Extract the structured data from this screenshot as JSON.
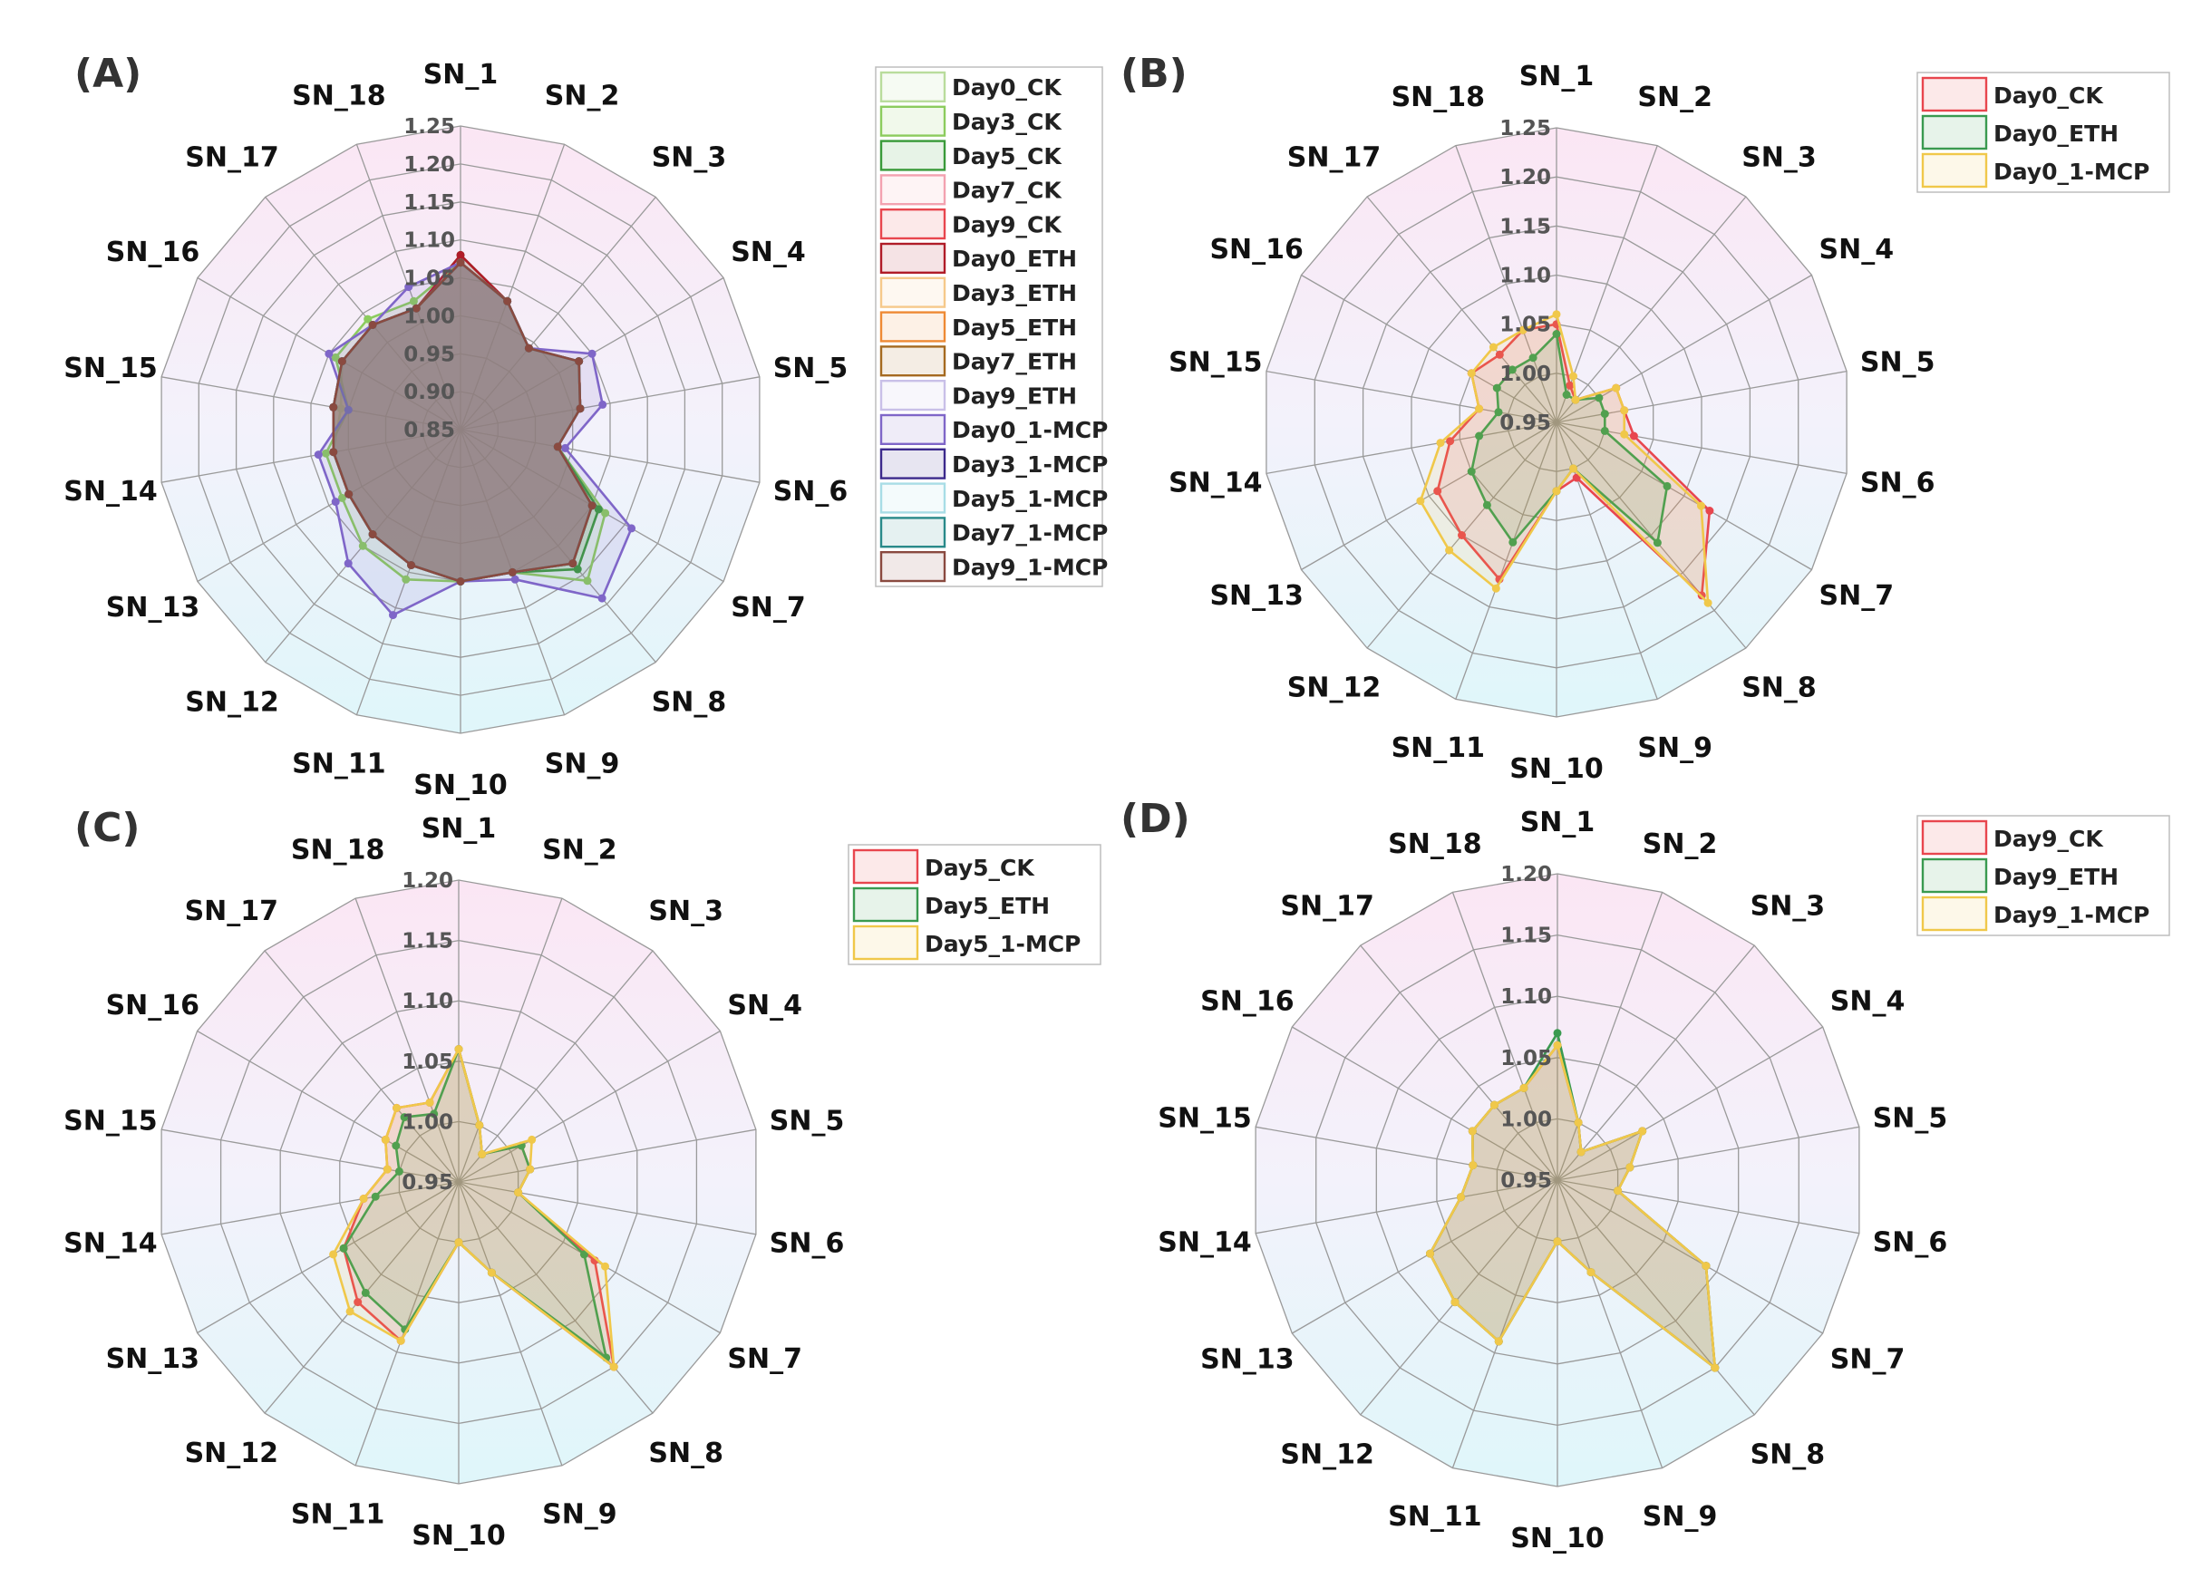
{
  "figure": {
    "panels": [
      {
        "label": "(A)"
      },
      {
        "label": "(B)"
      },
      {
        "label": "(C)"
      },
      {
        "label": "(D)"
      }
    ]
  },
  "chart_data": [
    {
      "type": "radar",
      "panel": "(A)",
      "axes": [
        "SN_1",
        "SN_2",
        "SN_3",
        "SN_4",
        "SN_5",
        "SN_6",
        "SN_7",
        "SN_8",
        "SN_9",
        "SN_10",
        "SN_11",
        "SN_12",
        "SN_13",
        "SN_14",
        "SN_15",
        "SN_16",
        "SN_17",
        "SN_18"
      ],
      "rlim": [
        0.85,
        1.25
      ],
      "ticks": [
        0.85,
        0.9,
        0.95,
        1.0,
        1.05,
        1.1,
        1.15,
        1.2,
        1.25
      ],
      "tick_labels": [
        "0.85",
        "0.90",
        "0.95",
        "1.00",
        "1.05",
        "1.10",
        "1.15",
        "1.20",
        "1.25"
      ],
      "legend_position": "right",
      "series": [
        {
          "name": "Day0_CK",
          "color": "#b9dc9c",
          "values": [
            1.07,
            1.03,
            0.99,
            1.03,
            1.01,
            0.98,
            1.06,
            1.09,
            1.05,
            1.05,
            1.04,
            1.03,
            1.02,
            1.02,
            1.01,
            1.03,
            1.03,
            1.02
          ]
        },
        {
          "name": "Day3_CK",
          "color": "#8ccc5e",
          "values": [
            1.07,
            1.03,
            0.99,
            1.03,
            1.01,
            0.98,
            1.07,
            1.11,
            1.05,
            1.05,
            1.06,
            1.05,
            1.03,
            1.03,
            1.0,
            1.04,
            1.04,
            1.03
          ]
        },
        {
          "name": "Day5_CK",
          "color": "#3a9a3a",
          "values": [
            1.08,
            1.03,
            0.99,
            1.03,
            1.01,
            0.98,
            1.06,
            1.09,
            1.05,
            1.05,
            1.04,
            1.03,
            1.02,
            1.02,
            1.02,
            1.03,
            1.03,
            1.02
          ]
        },
        {
          "name": "Day7_CK",
          "color": "#f3a2b0",
          "values": [
            1.07,
            1.03,
            0.99,
            1.03,
            1.01,
            0.98,
            1.05,
            1.08,
            1.05,
            1.05,
            1.04,
            1.03,
            1.02,
            1.02,
            1.02,
            1.03,
            1.03,
            1.02
          ]
        },
        {
          "name": "Day9_CK",
          "color": "#e8464e",
          "values": [
            1.07,
            1.03,
            0.99,
            1.03,
            1.01,
            0.98,
            1.05,
            1.08,
            1.05,
            1.05,
            1.04,
            1.03,
            1.02,
            1.02,
            1.02,
            1.03,
            1.03,
            1.02
          ]
        },
        {
          "name": "Day0_ETH",
          "color": "#b01c28",
          "values": [
            1.08,
            1.03,
            0.99,
            1.03,
            1.01,
            0.98,
            1.05,
            1.08,
            1.05,
            1.05,
            1.04,
            1.03,
            1.02,
            1.02,
            1.02,
            1.03,
            1.03,
            1.02
          ]
        },
        {
          "name": "Day3_ETH",
          "color": "#f6c98b",
          "values": [
            1.07,
            1.03,
            0.99,
            1.03,
            1.01,
            0.98,
            1.05,
            1.08,
            1.05,
            1.05,
            1.04,
            1.03,
            1.02,
            1.02,
            1.02,
            1.03,
            1.03,
            1.02
          ]
        },
        {
          "name": "Day5_ETH",
          "color": "#ee8a35",
          "values": [
            1.07,
            1.03,
            0.99,
            1.03,
            1.01,
            0.98,
            1.05,
            1.08,
            1.05,
            1.05,
            1.04,
            1.03,
            1.02,
            1.02,
            1.02,
            1.03,
            1.03,
            1.02
          ]
        },
        {
          "name": "Day7_ETH",
          "color": "#a56a20",
          "values": [
            1.07,
            1.03,
            0.99,
            1.03,
            1.01,
            0.98,
            1.05,
            1.08,
            1.05,
            1.05,
            1.04,
            1.03,
            1.02,
            1.02,
            1.02,
            1.03,
            1.03,
            1.02
          ]
        },
        {
          "name": "Day9_ETH",
          "color": "#c9c0e8",
          "values": [
            1.07,
            1.03,
            0.99,
            1.03,
            1.01,
            0.98,
            1.05,
            1.08,
            1.05,
            1.05,
            1.04,
            1.03,
            1.02,
            1.02,
            1.02,
            1.03,
            1.03,
            1.02
          ]
        },
        {
          "name": "Day0_1-MCP",
          "color": "#7f66c8",
          "values": [
            1.07,
            1.03,
            0.99,
            1.05,
            1.04,
            0.99,
            1.11,
            1.14,
            1.06,
            1.05,
            1.11,
            1.08,
            1.04,
            1.04,
            1.0,
            1.05,
            1.03,
            1.05
          ]
        },
        {
          "name": "Day3_1-MCP",
          "color": "#3c2a8c",
          "values": [
            1.07,
            1.03,
            0.99,
            1.03,
            1.01,
            0.98,
            1.05,
            1.08,
            1.05,
            1.05,
            1.04,
            1.03,
            1.02,
            1.02,
            1.02,
            1.03,
            1.03,
            1.02
          ]
        },
        {
          "name": "Day5_1-MCP",
          "color": "#a8dde6",
          "values": [
            1.07,
            1.03,
            0.99,
            1.03,
            1.01,
            0.98,
            1.05,
            1.08,
            1.05,
            1.05,
            1.04,
            1.03,
            1.02,
            1.02,
            1.02,
            1.03,
            1.03,
            1.02
          ]
        },
        {
          "name": "Day7_1-MCP",
          "color": "#2a8a8a",
          "values": [
            1.07,
            1.03,
            0.99,
            1.03,
            1.01,
            0.98,
            1.05,
            1.08,
            1.05,
            1.05,
            1.04,
            1.03,
            1.02,
            1.02,
            1.02,
            1.03,
            1.03,
            1.02
          ]
        },
        {
          "name": "Day9_1-MCP",
          "color": "#8a4a40",
          "values": [
            1.07,
            1.03,
            0.99,
            1.03,
            1.01,
            0.98,
            1.05,
            1.08,
            1.05,
            1.05,
            1.04,
            1.03,
            1.02,
            1.02,
            1.02,
            1.03,
            1.03,
            1.02
          ]
        }
      ]
    },
    {
      "type": "radar",
      "panel": "(B)",
      "axes": [
        "SN_1",
        "SN_2",
        "SN_3",
        "SN_4",
        "SN_5",
        "SN_6",
        "SN_7",
        "SN_8",
        "SN_9",
        "SN_10",
        "SN_11",
        "SN_12",
        "SN_13",
        "SN_14",
        "SN_15",
        "SN_16",
        "SN_17",
        "SN_18"
      ],
      "rlim": [
        0.95,
        1.25
      ],
      "ticks": [
        0.95,
        1.0,
        1.05,
        1.1,
        1.15,
        1.2,
        1.25
      ],
      "tick_labels": [
        "0.95",
        "1.00",
        "1.05",
        "1.10",
        "1.15",
        "1.20",
        "1.25"
      ],
      "legend_position": "top-right",
      "series": [
        {
          "name": "Day0_CK",
          "color": "#e8464e",
          "values": [
            1.05,
            0.99,
            0.98,
            1.02,
            1.02,
            1.03,
            1.13,
            1.18,
            1.01,
            1.02,
            1.12,
            1.1,
            1.09,
            1.06,
            1.03,
            1.05,
            1.04,
            1.05
          ]
        },
        {
          "name": "Day0_ETH",
          "color": "#3a9a50",
          "values": [
            1.04,
            0.98,
            0.98,
            1.0,
            1.0,
            1.0,
            1.08,
            1.11,
            1.0,
            1.02,
            1.08,
            1.06,
            1.05,
            1.03,
            1.01,
            1.02,
            1.02,
            1.02
          ]
        },
        {
          "name": "Day0_1-MCP",
          "color": "#f0c84a",
          "values": [
            1.06,
            1.0,
            0.98,
            1.02,
            1.02,
            1.02,
            1.12,
            1.19,
            1.0,
            1.02,
            1.13,
            1.12,
            1.11,
            1.07,
            1.03,
            1.05,
            1.05,
            1.05
          ]
        }
      ]
    },
    {
      "type": "radar",
      "panel": "(C)",
      "axes": [
        "SN_1",
        "SN_2",
        "SN_3",
        "SN_4",
        "SN_5",
        "SN_6",
        "SN_7",
        "SN_8",
        "SN_9",
        "SN_10",
        "SN_11",
        "SN_12",
        "SN_13",
        "SN_14",
        "SN_15",
        "SN_16",
        "SN_17",
        "SN_18"
      ],
      "rlim": [
        0.95,
        1.2
      ],
      "ticks": [
        0.95,
        1.0,
        1.05,
        1.1,
        1.15,
        1.2
      ],
      "tick_labels": [
        "0.95",
        "1.00",
        "1.05",
        "1.10",
        "1.15",
        "1.20"
      ],
      "legend_position": "top-right",
      "series": [
        {
          "name": "Day5_CK",
          "color": "#e8464e",
          "values": [
            1.06,
            1.0,
            0.98,
            1.01,
            1.01,
            1.0,
            1.08,
            1.15,
            1.03,
            1.0,
            1.09,
            1.08,
            1.06,
            1.03,
            1.01,
            1.02,
            1.03,
            1.02
          ]
        },
        {
          "name": "Day5_ETH",
          "color": "#3a9a50",
          "values": [
            1.06,
            1.0,
            0.98,
            1.01,
            1.01,
            1.0,
            1.07,
            1.14,
            1.03,
            1.0,
            1.08,
            1.07,
            1.06,
            1.02,
            1.0,
            1.01,
            1.02,
            1.01
          ]
        },
        {
          "name": "Day5_1-MCP",
          "color": "#f0c84a",
          "values": [
            1.06,
            1.0,
            0.98,
            1.02,
            1.01,
            1.0,
            1.09,
            1.15,
            1.03,
            1.0,
            1.09,
            1.09,
            1.07,
            1.03,
            1.01,
            1.02,
            1.03,
            1.02
          ]
        }
      ]
    },
    {
      "type": "radar",
      "panel": "(D)",
      "axes": [
        "SN_1",
        "SN_2",
        "SN_3",
        "SN_4",
        "SN_5",
        "SN_6",
        "SN_7",
        "SN_8",
        "SN_9",
        "SN_10",
        "SN_11",
        "SN_12",
        "SN_13",
        "SN_14",
        "SN_15",
        "SN_16",
        "SN_17",
        "SN_18"
      ],
      "rlim": [
        0.95,
        1.2
      ],
      "ticks": [
        0.95,
        1.0,
        1.05,
        1.1,
        1.15,
        1.2
      ],
      "tick_labels": [
        "0.95",
        "1.00",
        "1.05",
        "1.10",
        "1.15",
        "1.20"
      ],
      "legend_position": "top-right",
      "series": [
        {
          "name": "Day9_CK",
          "color": "#e8464e",
          "values": [
            1.06,
            1.0,
            0.98,
            1.03,
            1.01,
            1.0,
            1.09,
            1.15,
            1.03,
            1.0,
            1.09,
            1.08,
            1.07,
            1.03,
            1.02,
            1.03,
            1.03,
            1.03
          ]
        },
        {
          "name": "Day9_ETH",
          "color": "#3a9a50",
          "values": [
            1.07,
            1.0,
            0.98,
            1.03,
            1.01,
            1.0,
            1.09,
            1.15,
            1.03,
            1.0,
            1.09,
            1.08,
            1.07,
            1.03,
            1.02,
            1.03,
            1.03,
            1.03
          ]
        },
        {
          "name": "Day9_1-MCP",
          "color": "#f0c84a",
          "values": [
            1.06,
            1.0,
            0.98,
            1.03,
            1.01,
            1.0,
            1.09,
            1.15,
            1.03,
            1.0,
            1.09,
            1.08,
            1.07,
            1.03,
            1.02,
            1.03,
            1.03,
            1.03
          ]
        }
      ]
    }
  ]
}
